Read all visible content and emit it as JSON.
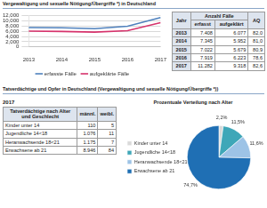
{
  "title": "Vergewaltigung und sexuelle Nötigung/Übergriffe *) in Deutschland",
  "chart_data": [
    {
      "type": "line",
      "categories": [
        "2013",
        "2014",
        "2015",
        "2016",
        "2017"
      ],
      "series": [
        {
          "name": "erfasste Fälle",
          "color": "#4f81bd",
          "values": [
            7408,
            7345,
            7022,
            7919,
            11282
          ]
        },
        {
          "name": "aufgeklärte Fälle",
          "color": "#d6336c",
          "values": [
            6077,
            5952,
            5679,
            6223,
            9318
          ]
        }
      ],
      "ylim": [
        0,
        12000
      ],
      "yticks": [
        0,
        {
          "value": 2000,
          "label": "2,000"
        },
        {
          "value": 4000,
          "label": "4,000"
        },
        {
          "value": 6000,
          "label": "6,000"
        },
        {
          "value": 8000,
          "label": "8,000"
        },
        {
          "value": 10000,
          "label": "10,000"
        },
        {
          "value": 12000,
          "label": "12,000"
        }
      ],
      "grid": true,
      "legend": "bottom"
    },
    {
      "type": "pie",
      "title": "Prozentuale Verteilung nach Alter",
      "categories": [
        "Kinder unter 14",
        "Jugendliche 14<18",
        "Heranwachsende 18<21",
        "Erwachsene ab 21"
      ],
      "values": [
        2.2,
        11.5,
        11.6,
        74.7
      ],
      "value_labels": [
        "2,2%",
        "11,5%",
        "11,6%",
        "74,7%"
      ],
      "colors": [
        "#d9d9d9",
        "#3fa7b8",
        "#9dc3e6",
        "#1f6fb4"
      ],
      "data_labels": true,
      "legend": "left"
    }
  ],
  "cases_table": {
    "header": [
      "Jahr",
      "Anzahl Fälle",
      "AQ"
    ],
    "subheader": [
      "erfasst",
      "aufgeklärt"
    ],
    "rows": [
      [
        "2013",
        "7.408",
        "6.077",
        "82,0"
      ],
      [
        "2014",
        "7.345",
        "5.952",
        "81,0"
      ],
      [
        "2015",
        "7.022",
        "5.679",
        "80,9"
      ],
      [
        "2016",
        "7.919",
        "6.223",
        "78,6"
      ],
      [
        "2017",
        "11.282",
        "9.318",
        "82,6"
      ]
    ]
  },
  "section_title": "Tatverdächtige und Opfer in Deutschland (Vergewaltigung und sexuelle Nötigung/Übergriffe *))",
  "year": "2017",
  "suspects_table": {
    "header": [
      "Tatverdächtige nach Alter und Geschlecht",
      "männl.",
      "weibl."
    ],
    "rows": [
      [
        "Kinder unter 14",
        "110",
        "5"
      ],
      [
        "Jugendliche 14<18",
        "1.076",
        "11"
      ],
      [
        "Heranwachsende 18<21",
        "1.175",
        "7"
      ],
      [
        "Erwachsene ab 21",
        "8.946",
        "84"
      ]
    ]
  }
}
